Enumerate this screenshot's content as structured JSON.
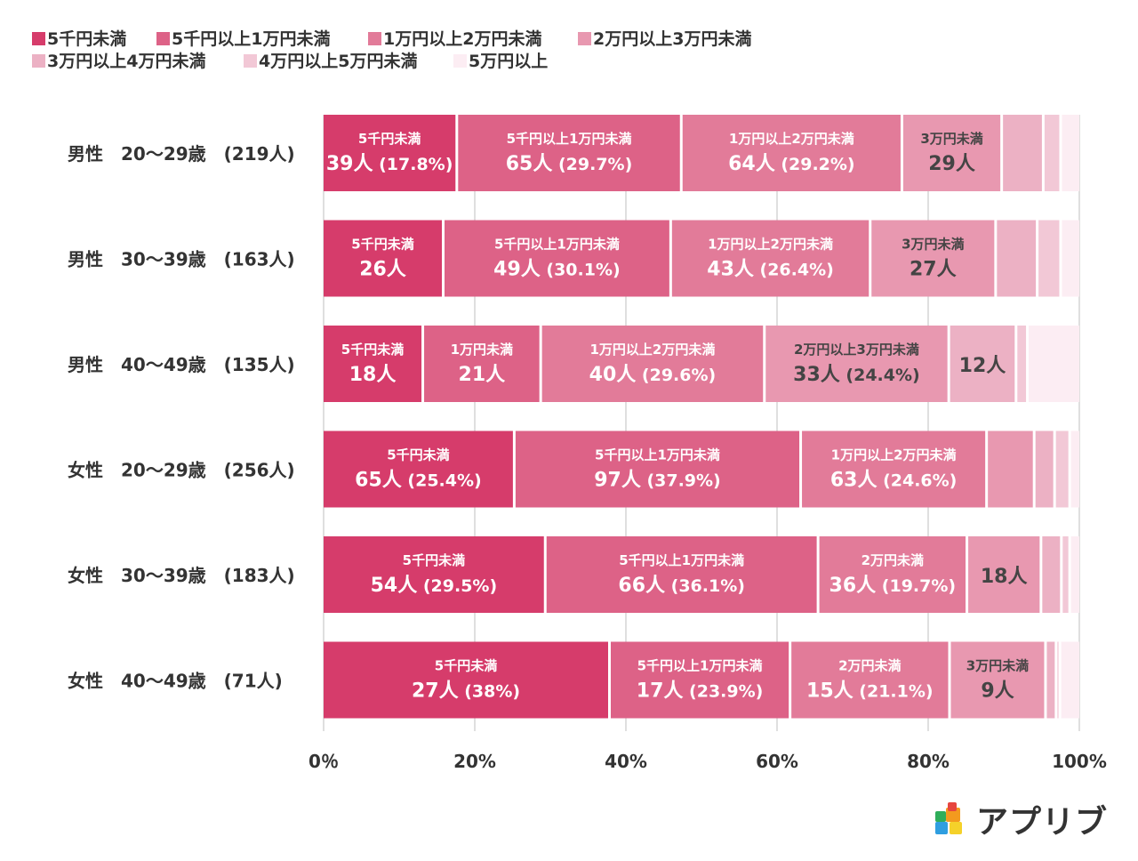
{
  "chart_data": {
    "type": "bar",
    "orientation": "horizontal",
    "stacked": true,
    "normalized": true,
    "legend_position": "top-left",
    "grid": "vertical",
    "xlim": [
      0,
      100
    ],
    "x_tick_labels": [
      "0％",
      "20%",
      "40%",
      "60%",
      "80%",
      "100%"
    ],
    "categories": [
      "男性　20〜29歳　(219人)",
      "男性　30〜39歳　(163人)",
      "男性　40〜49歳　(135人)",
      "女性　20〜29歳　(256人)",
      "女性　30〜39歳　(183人)",
      "女性　40〜49歳　(71人)"
    ],
    "series": [
      {
        "name": "5千円未満",
        "color": "#d63c6b",
        "values": [
          17.8,
          16.0,
          13.3,
          25.4,
          29.5,
          38.0
        ]
      },
      {
        "name": "5千円以上1万円未満",
        "color": "#dd6287",
        "values": [
          29.7,
          30.1,
          15.6,
          37.9,
          36.1,
          23.9
        ]
      },
      {
        "name": "1万円以上2万円未満",
        "color": "#e27b99",
        "values": [
          29.2,
          26.4,
          29.6,
          24.6,
          19.7,
          21.1
        ]
      },
      {
        "name": "2万円以上3万円未満",
        "color": "#e898b0",
        "values": [
          13.2,
          16.6,
          24.4,
          6.3,
          9.8,
          12.7
        ]
      },
      {
        "name": "3万円以上4万円未満",
        "color": "#ecb1c4",
        "values": [
          5.5,
          5.5,
          8.9,
          2.7,
          2.7,
          1.4
        ]
      },
      {
        "name": "4万円以上5万円未満",
        "color": "#f2c8d6",
        "values": [
          2.3,
          3.1,
          1.5,
          2.0,
          1.1,
          0.5
        ]
      },
      {
        "name": "5万円以上",
        "color": "#fcedf3",
        "values": [
          2.3,
          2.3,
          6.7,
          1.1,
          1.1,
          2.4
        ]
      }
    ],
    "segment_labels": [
      [
        {
          "series": 0,
          "top": "5千円未満",
          "bottom": "39人",
          "pct": " (17.8%)"
        },
        {
          "series": 1,
          "top": "5千円以上1万円未満",
          "bottom": "65人",
          "pct": " (29.7%)"
        },
        {
          "series": 2,
          "top": "1万円以上2万円未満",
          "bottom": "64人",
          "pct": " (29.2%)"
        },
        {
          "series": 3,
          "top": "3万円未満",
          "bottom": "29人",
          "pct": ""
        }
      ],
      [
        {
          "series": 0,
          "top": "5千円未満",
          "bottom": "26人",
          "pct": ""
        },
        {
          "series": 1,
          "top": "5千円以上1万円未満",
          "bottom": "49人",
          "pct": " (30.1%)"
        },
        {
          "series": 2,
          "top": "1万円以上2万円未満",
          "bottom": "43人",
          "pct": " (26.4%)"
        },
        {
          "series": 3,
          "top": "3万円未満",
          "bottom": "27人",
          "pct": ""
        }
      ],
      [
        {
          "series": 0,
          "top": "5千円未満",
          "bottom": "18人",
          "pct": ""
        },
        {
          "series": 1,
          "top": "1万円未満",
          "bottom": "21人",
          "pct": ""
        },
        {
          "series": 2,
          "top": "1万円以上2万円未満",
          "bottom": "40人",
          "pct": " (29.6%)"
        },
        {
          "series": 3,
          "top": "2万円以上3万円未満",
          "bottom": "33人",
          "pct": " (24.4%)"
        },
        {
          "series": 4,
          "top": "",
          "bottom": "12人",
          "pct": ""
        }
      ],
      [
        {
          "series": 0,
          "top": "5千円未満",
          "bottom": "65人",
          "pct": " (25.4%)"
        },
        {
          "series": 1,
          "top": "5千円以上1万円未満",
          "bottom": "97人",
          "pct": " (37.9%)"
        },
        {
          "series": 2,
          "top": "1万円以上2万円未満",
          "bottom": "63人",
          "pct": " (24.6%)"
        }
      ],
      [
        {
          "series": 0,
          "top": "5千円未満",
          "bottom": "54人",
          "pct": " (29.5%)"
        },
        {
          "series": 1,
          "top": "5千円以上1万円未満",
          "bottom": "66人",
          "pct": " (36.1%)"
        },
        {
          "series": 2,
          "top": "2万円未満",
          "bottom": "36人",
          "pct": " (19.7%)"
        },
        {
          "series": 3,
          "top": "",
          "bottom": "18人",
          "pct": ""
        }
      ],
      [
        {
          "series": 0,
          "top": "5千円未満",
          "bottom": "27人",
          "pct": " (38%)"
        },
        {
          "series": 1,
          "top": "5千円以上1万円未満",
          "bottom": "17人",
          "pct": " (23.9%)"
        },
        {
          "series": 2,
          "top": "2万円未満",
          "bottom": "15人",
          "pct": " (21.1%)"
        },
        {
          "series": 3,
          "top": "3万円未満",
          "bottom": "9人",
          "pct": ""
        }
      ]
    ]
  },
  "branding": {
    "logo_text": "アプリブ",
    "logo_colors": [
      "#2fae5a",
      "#f39a1e",
      "#e7463f",
      "#2f9ee0",
      "#f5d12a"
    ]
  }
}
